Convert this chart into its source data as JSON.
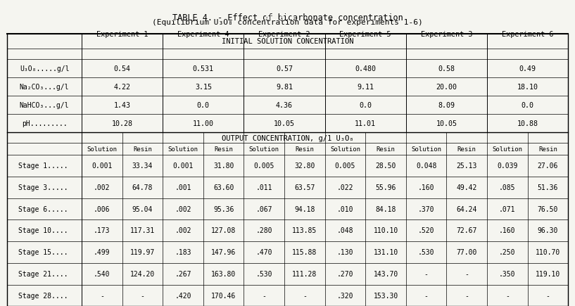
{
  "title": "TABLE 4. - Effect of bicarbonate concentration",
  "subtitle": "(Equilibrium U₃O₈ concentration data for experiments 1-6)",
  "bg_color": "#f5f5f0",
  "experiments": [
    "Experiment 1",
    "Experiment 4",
    "Experiment 2",
    "Experiment 5",
    "Experiment 3",
    "Experiment 6"
  ],
  "initial_section_header": "INITIAL SOLUTION CONCENTRATION",
  "initial_rows": [
    {
      "label": "U₃O₈.....g/l",
      "values": [
        "0.54",
        "0.531",
        "0.57",
        "0.480",
        "0.58",
        "0.49"
      ]
    },
    {
      "label": "Na₂CO₃...g/l",
      "values": [
        "4.22",
        "3.15",
        "9.81",
        "9.11",
        "20.00",
        "18.10"
      ]
    },
    {
      "label": "NaHCO₃...g/l",
      "values": [
        "1.43",
        "0.0",
        "4.36",
        "0.0",
        "8.09",
        "0.0"
      ]
    },
    {
      "label": "pH.........",
      "values": [
        "10.28",
        "11.00",
        "10.05",
        "11.01",
        "10.05",
        "10.88"
      ]
    }
  ],
  "output_section_header": "OUTPUT CONCENTRATION, g/1 U₃O₈",
  "output_subheader": [
    "Solution",
    "Resin",
    "Solution",
    "Resin",
    "Solution",
    "Resin",
    "Solution",
    "Resin",
    "Solution",
    "Resin",
    "Solution",
    "Resin"
  ],
  "output_rows": [
    {
      "label": "Stage 1.....",
      "values": [
        "0.001",
        "33.34",
        "0.001",
        "31.80",
        "0.005",
        "32.80",
        "0.005",
        "28.50",
        "0.048",
        "25.13",
        "0.039",
        "27.06"
      ]
    },
    {
      "label": "Stage 3.....",
      "values": [
        ".002",
        "64.78",
        ".001",
        "63.60",
        ".011",
        "63.57",
        ".022",
        "55.96",
        ".160",
        "49.42",
        ".085",
        "51.36"
      ]
    },
    {
      "label": "Stage 6.....",
      "values": [
        ".006",
        "95.04",
        ".002",
        "95.36",
        ".067",
        "94.18",
        ".010",
        "84.18",
        ".370",
        "64.24",
        ".071",
        "76.50"
      ]
    },
    {
      "label": "Stage 10....",
      "values": [
        ".173",
        "117.31",
        ".002",
        "127.08",
        ".280",
        "113.85",
        ".048",
        "110.10",
        ".520",
        "72.67",
        ".160",
        "96.30"
      ]
    },
    {
      "label": "Stage 15....",
      "values": [
        ".499",
        "119.97",
        ".183",
        "147.96",
        ".470",
        "115.88",
        ".130",
        "131.10",
        ".530",
        "77.00",
        ".250",
        "110.70"
      ]
    },
    {
      "label": "Stage 21....",
      "values": [
        ".540",
        "124.20",
        ".267",
        "163.80",
        ".530",
        "111.28",
        ".270",
        "143.70",
        "-",
        "-",
        ".350",
        "119.10"
      ]
    },
    {
      "label": "Stage 28....",
      "values": [
        "-",
        "-",
        ".420",
        "170.46",
        "-",
        "-",
        ".320",
        "153.30",
        "-",
        "-",
        "-",
        "-"
      ]
    }
  ]
}
